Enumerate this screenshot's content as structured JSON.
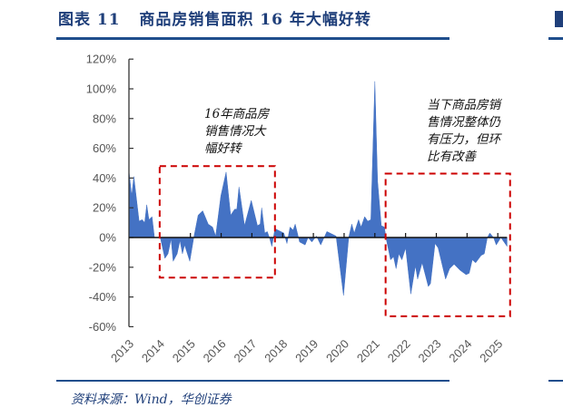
{
  "header": {
    "title": "图表 11   商品房销售面积 16 年大幅好转"
  },
  "footer": {
    "source": "资料来源：Wind，华创证券"
  },
  "chart_data": {
    "type": "area",
    "title": "",
    "xlabel": "",
    "ylabel": "",
    "color": "#4472c4",
    "ylim": [
      -60,
      120
    ],
    "yticks": [
      "120%",
      "100%",
      "80%",
      "60%",
      "40%",
      "20%",
      "0%",
      "-20%",
      "-40%",
      "-60%"
    ],
    "ytick_values": [
      120,
      100,
      80,
      60,
      40,
      20,
      0,
      -20,
      -40,
      -60
    ],
    "xticks": [
      "2013",
      "2014",
      "2015",
      "2016",
      "2017",
      "2018",
      "2019",
      "2020",
      "2021",
      "2022",
      "2023",
      "2024",
      "2025"
    ],
    "xlim": [
      2013,
      2026
    ],
    "grid": false,
    "x_unit": "year",
    "y_unit": "%",
    "series": [
      {
        "points": [
          [
            2013.0,
            45
          ],
          [
            2013.09,
            28
          ],
          [
            2013.16,
            41
          ],
          [
            2013.33,
            11
          ],
          [
            2013.43,
            12
          ],
          [
            2013.51,
            10
          ],
          [
            2013.58,
            22
          ],
          [
            2013.65,
            12
          ],
          [
            2013.75,
            14
          ],
          [
            2013.83,
            0
          ],
          [
            2014.02,
            0
          ],
          [
            2014.17,
            -14
          ],
          [
            2014.27,
            -11
          ],
          [
            2014.37,
            -1
          ],
          [
            2014.44,
            -16
          ],
          [
            2014.57,
            -11
          ],
          [
            2014.66,
            -2
          ],
          [
            2014.74,
            -11
          ],
          [
            2014.81,
            -5
          ],
          [
            2014.98,
            -16
          ],
          [
            2015.11,
            0
          ],
          [
            2015.25,
            15
          ],
          [
            2015.4,
            18
          ],
          [
            2015.58,
            9
          ],
          [
            2015.72,
            7
          ],
          [
            2015.82,
            1
          ],
          [
            2015.99,
            28
          ],
          [
            2016.16,
            44
          ],
          [
            2016.31,
            15
          ],
          [
            2016.44,
            19
          ],
          [
            2016.51,
            19
          ],
          [
            2016.58,
            34
          ],
          [
            2016.76,
            8
          ],
          [
            2016.98,
            25
          ],
          [
            2017.18,
            8
          ],
          [
            2017.27,
            9
          ],
          [
            2017.32,
            20
          ],
          [
            2017.42,
            3
          ],
          [
            2017.5,
            4
          ],
          [
            2017.57,
            0
          ],
          [
            2017.65,
            -6
          ],
          [
            2017.75,
            6
          ],
          [
            2018.04,
            3
          ],
          [
            2018.14,
            -4
          ],
          [
            2018.24,
            7
          ],
          [
            2018.34,
            5
          ],
          [
            2018.41,
            9
          ],
          [
            2018.55,
            -3
          ],
          [
            2018.73,
            -5
          ],
          [
            2018.83,
            0
          ],
          [
            2018.95,
            -3
          ],
          [
            2019.1,
            1
          ],
          [
            2019.24,
            -5
          ],
          [
            2019.44,
            4
          ],
          [
            2019.74,
            1
          ],
          [
            2019.98,
            -39
          ],
          [
            2020.15,
            0
          ],
          [
            2020.25,
            9
          ],
          [
            2020.33,
            3
          ],
          [
            2020.47,
            12
          ],
          [
            2020.55,
            7
          ],
          [
            2020.67,
            14
          ],
          [
            2020.77,
            11
          ],
          [
            2020.87,
            12
          ],
          [
            2021.0,
            105
          ],
          [
            2021.09,
            38
          ],
          [
            2021.21,
            8
          ],
          [
            2021.31,
            7
          ],
          [
            2021.36,
            0
          ],
          [
            2021.51,
            -15
          ],
          [
            2021.61,
            -13
          ],
          [
            2021.69,
            -21
          ],
          [
            2021.78,
            -11
          ],
          [
            2021.88,
            -15
          ],
          [
            2022.0,
            -7
          ],
          [
            2022.17,
            -38
          ],
          [
            2022.32,
            -19
          ],
          [
            2022.39,
            -28
          ],
          [
            2022.54,
            -17
          ],
          [
            2022.74,
            -33
          ],
          [
            2022.81,
            -31
          ],
          [
            2022.96,
            -4
          ],
          [
            2023.06,
            -7
          ],
          [
            2023.3,
            -28
          ],
          [
            2023.43,
            -21
          ],
          [
            2023.58,
            -18
          ],
          [
            2023.77,
            -22
          ],
          [
            2023.97,
            -25
          ],
          [
            2024.07,
            -24
          ],
          [
            2024.17,
            -15
          ],
          [
            2024.28,
            -17
          ],
          [
            2024.46,
            -12
          ],
          [
            2024.56,
            -11
          ],
          [
            2024.66,
            0
          ],
          [
            2024.74,
            3
          ],
          [
            2024.86,
            0
          ],
          [
            2024.95,
            -5
          ],
          [
            2025.1,
            0
          ],
          [
            2025.3,
            -6
          ]
        ]
      }
    ],
    "annotations": [
      {
        "text": [
          "16年商品房",
          "销售情况大",
          "幅好转"
        ],
        "range": [
          2014.0,
          2017.75
        ],
        "ylim": [
          -27,
          48
        ]
      },
      {
        "text": [
          "当下商品房销",
          "售情况整体仍",
          "有压力，但环",
          "比有改善"
        ],
        "range": [
          2021.35,
          2025.4
        ],
        "ylim": [
          -53,
          43
        ]
      }
    ],
    "highlight_color": "#cc0000"
  }
}
